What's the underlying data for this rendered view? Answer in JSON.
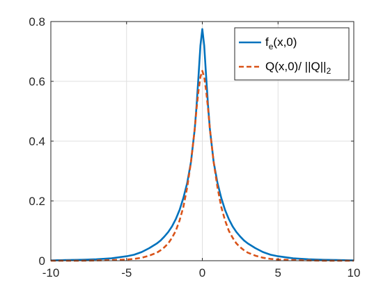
{
  "chart_data": {
    "type": "line",
    "title": "",
    "xlabel": "",
    "ylabel": "",
    "xlim": [
      -10,
      10
    ],
    "ylim": [
      0,
      0.8
    ],
    "xticks": [
      -10,
      -5,
      0,
      5,
      10
    ],
    "xtick_labels": [
      "-10",
      "-5",
      "0",
      "5",
      "10"
    ],
    "yticks": [
      0,
      0.2,
      0.4,
      0.6,
      0.8
    ],
    "ytick_labels": [
      "0",
      "0.2",
      "0.4",
      "0.6",
      "0.8"
    ],
    "grid": true,
    "legend_position": "top-right",
    "series": [
      {
        "legend_main": "f",
        "legend_sub": "e",
        "legend_tail": "(x,0)",
        "legend_sub2": "",
        "color": "#0072BD",
        "style": "solid",
        "x": [
          -10,
          -9,
          -8,
          -7,
          -6,
          -5,
          -4.5,
          -4,
          -3.5,
          -3,
          -2.75,
          -2.5,
          -2.25,
          -2,
          -1.75,
          -1.5,
          -1.25,
          -1,
          -0.75,
          -0.5,
          -0.375,
          -0.25,
          -0.125,
          0,
          0.125,
          0.25,
          0.375,
          0.5,
          0.75,
          1,
          1.25,
          1.5,
          1.75,
          2,
          2.25,
          2.5,
          2.75,
          3,
          3.5,
          4,
          4.5,
          5,
          6,
          7,
          8,
          9,
          10
        ],
        "y": [
          0.001,
          0.002,
          0.003,
          0.005,
          0.008,
          0.015,
          0.02,
          0.029,
          0.042,
          0.058,
          0.068,
          0.081,
          0.096,
          0.115,
          0.139,
          0.17,
          0.21,
          0.26,
          0.33,
          0.44,
          0.52,
          0.62,
          0.72,
          0.775,
          0.72,
          0.62,
          0.52,
          0.44,
          0.33,
          0.26,
          0.21,
          0.17,
          0.139,
          0.115,
          0.096,
          0.081,
          0.068,
          0.058,
          0.042,
          0.029,
          0.02,
          0.015,
          0.008,
          0.005,
          0.003,
          0.002,
          0.001
        ]
      },
      {
        "legend_main": "Q(x,0)/ ||Q||",
        "legend_sub": "",
        "legend_tail": "",
        "legend_sub2": "2",
        "color": "#D95319",
        "style": "dashed",
        "x": [
          -10,
          -9,
          -8,
          -7,
          -6,
          -5,
          -4.5,
          -4,
          -3.5,
          -3,
          -2.75,
          -2.5,
          -2.25,
          -2,
          -1.75,
          -1.5,
          -1.25,
          -1,
          -0.75,
          -0.5,
          -0.375,
          -0.25,
          -0.125,
          0,
          0.125,
          0.25,
          0.375,
          0.5,
          0.75,
          1,
          1.25,
          1.5,
          1.75,
          2,
          2.25,
          2.5,
          2.75,
          3,
          3.5,
          4,
          4.5,
          5,
          6,
          7,
          8,
          9,
          10
        ],
        "y": [
          0.0,
          0.0,
          0.0,
          0.001,
          0.002,
          0.004,
          0.006,
          0.01,
          0.017,
          0.027,
          0.035,
          0.045,
          0.058,
          0.077,
          0.1,
          0.135,
          0.18,
          0.245,
          0.33,
          0.44,
          0.51,
          0.57,
          0.615,
          0.635,
          0.615,
          0.57,
          0.51,
          0.44,
          0.33,
          0.245,
          0.18,
          0.135,
          0.1,
          0.077,
          0.058,
          0.045,
          0.035,
          0.027,
          0.017,
          0.01,
          0.006,
          0.004,
          0.002,
          0.001,
          0.0,
          0.0,
          0.0
        ]
      }
    ]
  }
}
